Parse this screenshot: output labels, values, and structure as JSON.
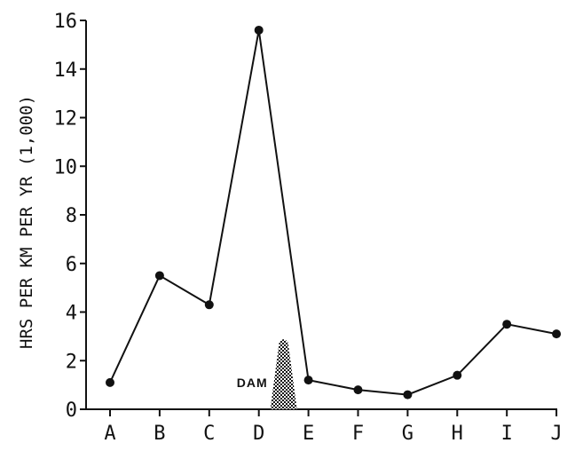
{
  "chart_data": {
    "type": "line",
    "categories": [
      "A",
      "B",
      "C",
      "D",
      "E",
      "F",
      "G",
      "H",
      "I",
      "J"
    ],
    "values": [
      1.1,
      5.5,
      4.3,
      15.6,
      1.2,
      0.8,
      0.6,
      1.4,
      3.5,
      3.1
    ],
    "ylabel": "HRS PER KM PER YR (1,000)",
    "xlabel": "",
    "ylim": [
      0,
      16
    ],
    "yticks": [
      "0",
      "2",
      "4",
      "6",
      "8",
      "10",
      "12",
      "14",
      "16"
    ],
    "grid": false,
    "annotations": [
      {
        "text": "DAM",
        "between": [
          "D",
          "E"
        ],
        "height": 2.9
      }
    ],
    "colors": {
      "line": "#111111",
      "hatch": "#111111"
    }
  }
}
